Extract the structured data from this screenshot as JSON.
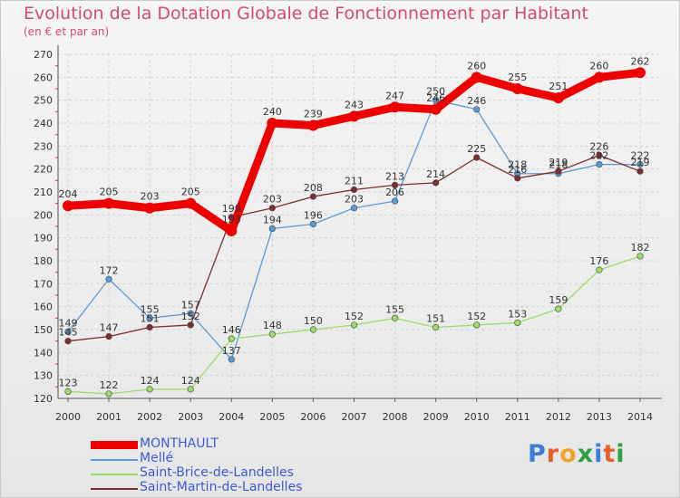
{
  "chart_data": {
    "type": "line",
    "title": "Evolution de la Dotation Globale de Fonctionnement par Habitant",
    "subtitle": "(en € et par an)",
    "x": [
      "2000",
      "2001",
      "2002",
      "2003",
      "2004",
      "2005",
      "2006",
      "2007",
      "2008",
      "2009",
      "2010",
      "2011",
      "2012",
      "2013",
      "2014"
    ],
    "ylim": [
      120,
      270
    ],
    "yticks": [
      120,
      130,
      140,
      150,
      160,
      170,
      180,
      190,
      200,
      210,
      220,
      230,
      240,
      250,
      260,
      270
    ],
    "grid": true,
    "legend_position": "bottom-left",
    "series": [
      {
        "name": "MONTHAULT",
        "color": "#ee0000",
        "values": [
          204,
          205,
          203,
          205,
          193,
          240,
          239,
          243,
          247,
          246,
          260,
          255,
          251,
          260,
          262
        ]
      },
      {
        "name": "Mellé",
        "color": "#5b9bd5",
        "values": [
          149,
          172,
          155,
          157,
          137,
          194,
          196,
          203,
          206,
          250,
          246,
          218,
          218,
          222,
          222
        ]
      },
      {
        "name": "Saint-Brice-de-Landelles",
        "color": "#9bdc6a",
        "values": [
          123,
          122,
          124,
          124,
          146,
          148,
          150,
          152,
          155,
          151,
          152,
          153,
          159,
          176,
          182
        ]
      },
      {
        "name": "Saint-Martin-de-Landelles",
        "color": "#7b2e2e",
        "values": [
          145,
          147,
          151,
          152,
          199,
          203,
          208,
          211,
          213,
          214,
          225,
          216,
          219,
          226,
          219
        ]
      }
    ],
    "labels": [
      [
        "204",
        "205",
        "203",
        "205",
        "193",
        "240",
        "239",
        "243",
        "247",
        "246",
        "260",
        "255",
        "251",
        "260",
        "262"
      ],
      [
        "149",
        "172",
        "155",
        "157",
        "137",
        "194",
        "196",
        "203",
        "206",
        "250",
        "246",
        "218",
        "218",
        "222",
        "222"
      ],
      [
        "123",
        "122",
        "124",
        "124",
        "146",
        "148",
        "150",
        "152",
        "155",
        "151",
        "152",
        "153",
        "159",
        "176",
        "182"
      ],
      [
        "145",
        "147",
        "151",
        "152",
        "199",
        "203",
        "208",
        "211",
        "213",
        "214",
        "225",
        "216",
        "219",
        "226",
        "219"
      ]
    ]
  },
  "logo": {
    "text": "Proxiti"
  }
}
